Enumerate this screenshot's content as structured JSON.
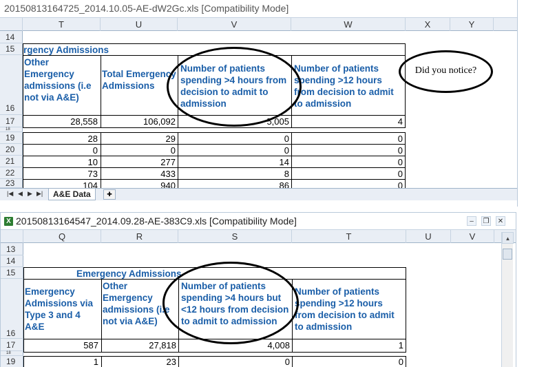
{
  "window1": {
    "title": "20150813164725_2014.10.05-AE-dW2Gc.xls  [Compatibility Mode]",
    "columns": [
      "T",
      "U",
      "V",
      "W",
      "X",
      "Y"
    ],
    "rows": [
      "14",
      "15",
      "16",
      "17",
      "18",
      "19",
      "20",
      "21",
      "22",
      "23"
    ],
    "section_title": "rgency Admissions",
    "headers": [
      "Other Emergency admissions (i.e not via A&E)",
      "Total Emergency Admissions",
      "Number of patients spending >4 hours from decision to admit to admission",
      "Number of patients spending >12 hours from decision to admit to admission"
    ],
    "totals": [
      "28,558",
      "106,092",
      "5,005",
      "4"
    ],
    "data_rows": [
      [
        "28",
        "29",
        "0",
        "0"
      ],
      [
        "0",
        "0",
        "0",
        "0"
      ],
      [
        "10",
        "277",
        "14",
        "0"
      ],
      [
        "73",
        "433",
        "8",
        "0"
      ],
      [
        "104",
        "940",
        "86",
        "0"
      ]
    ],
    "callout": "Did you notice?",
    "sheet_tab": "A&E Data",
    "nav_icons": [
      "first-sheet",
      "prev-sheet",
      "next-sheet",
      "last-sheet"
    ]
  },
  "window2": {
    "title": "20150813164547_2014.09.28-AE-383C9.xls  [Compatibility Mode]",
    "app_icon": "X",
    "columns": [
      "Q",
      "R",
      "S",
      "T",
      "U",
      "V"
    ],
    "rows": [
      "13",
      "14",
      "15",
      "16",
      "17",
      "18",
      "19"
    ],
    "section_title": "Emergency Admissions",
    "headers": [
      "Emergency Admissions via Type 3 and 4 A&E",
      "Other Emergency admissions (i.e not via A&E)",
      "Number of patients spending >4 hours but <12 hours from decision to admit to admission",
      "Number of patients spending >12 hours from decision to admit to admission"
    ],
    "totals": [
      "587",
      "27,818",
      "4,008",
      "1"
    ],
    "data_rows": [
      [
        "1",
        "23",
        "0",
        "0"
      ]
    ]
  },
  "colors": {
    "header_text": "#1a5ea8",
    "grid_header": "#e9eef5"
  }
}
